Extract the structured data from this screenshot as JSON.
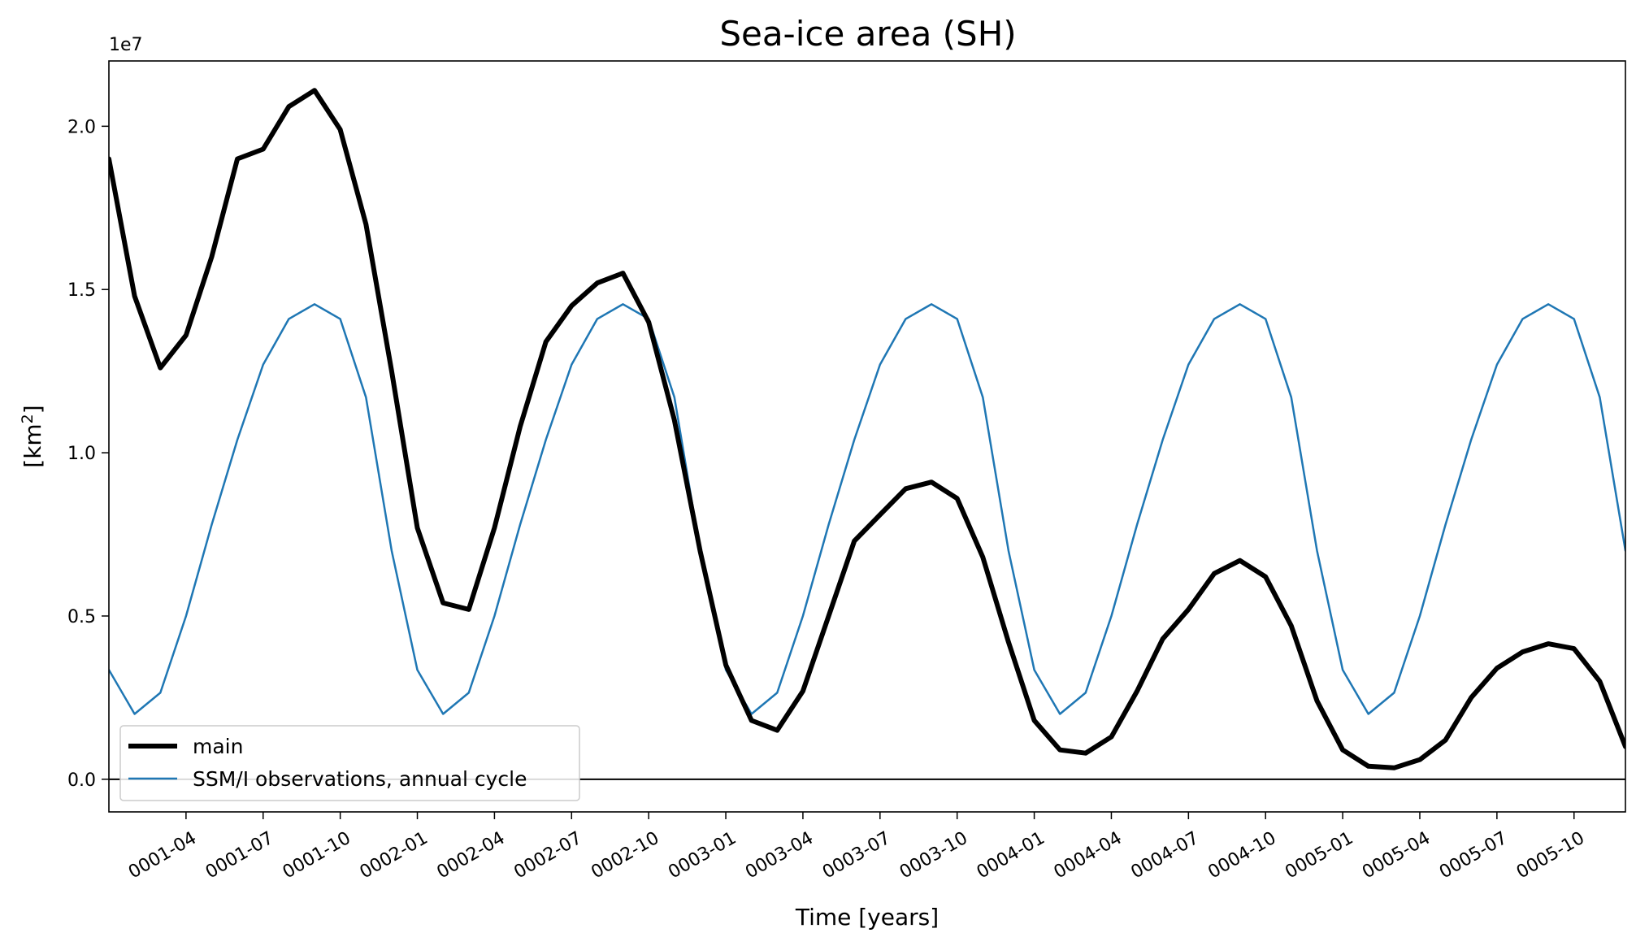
{
  "chart_data": {
    "type": "line",
    "title": "Sea-ice area (SH)",
    "xlabel": "Time [years]",
    "ylabel": "[km",
    "ylabel_sup": "2",
    "ylabel_close": "]",
    "y_offset_label": "1e7",
    "x_tick_labels": [
      "0001-04",
      "0001-07",
      "0001-10",
      "0002-01",
      "0002-04",
      "0002-07",
      "0002-10",
      "0003-01",
      "0003-04",
      "0003-07",
      "0003-10",
      "0004-01",
      "0004-04",
      "0004-07",
      "0004-10",
      "0005-01",
      "0005-04",
      "0005-07",
      "0005-10"
    ],
    "x_tick_months": [
      3,
      6,
      9,
      12,
      15,
      18,
      21,
      24,
      27,
      30,
      33,
      36,
      39,
      42,
      45,
      48,
      51,
      54,
      57
    ],
    "xlim": [
      0,
      59
    ],
    "ylim": [
      -0.1,
      2.2
    ],
    "y_ticks": [
      0.0,
      0.5,
      1.0,
      1.5,
      2.0
    ],
    "y_tick_labels": [
      "0.0",
      "0.5",
      "1.0",
      "1.5",
      "2.0"
    ],
    "zero_line": true,
    "legend": {
      "placement": "lower-left"
    },
    "series": [
      {
        "name": "main",
        "color": "#000000",
        "values": [
          1.9,
          1.48,
          1.26,
          1.36,
          1.6,
          1.9,
          1.93,
          2.06,
          2.11,
          1.99,
          1.7,
          1.25,
          0.77,
          0.54,
          0.52,
          0.77,
          1.08,
          1.34,
          1.45,
          1.52,
          1.55,
          1.4,
          1.1,
          0.7,
          0.35,
          0.18,
          0.15,
          0.27,
          0.5,
          0.73,
          0.81,
          0.89,
          0.91,
          0.86,
          0.68,
          0.42,
          0.18,
          0.09,
          0.08,
          0.13,
          0.27,
          0.43,
          0.52,
          0.63,
          0.67,
          0.62,
          0.47,
          0.24,
          0.09,
          0.04,
          0.035,
          0.06,
          0.12,
          0.25,
          0.34,
          0.39,
          0.415,
          0.4,
          0.3,
          0.1
        ]
      },
      {
        "name": "SSM/I observations, annual cycle",
        "color": "#1f77b4",
        "values": [
          0.335,
          0.2,
          0.265,
          0.5,
          0.78,
          1.04,
          1.27,
          1.41,
          1.455,
          1.41,
          1.17,
          0.7,
          0.335,
          0.2,
          0.265,
          0.5,
          0.78,
          1.04,
          1.27,
          1.41,
          1.455,
          1.41,
          1.17,
          0.7,
          0.335,
          0.2,
          0.265,
          0.5,
          0.78,
          1.04,
          1.27,
          1.41,
          1.455,
          1.41,
          1.17,
          0.7,
          0.335,
          0.2,
          0.265,
          0.5,
          0.78,
          1.04,
          1.27,
          1.41,
          1.455,
          1.41,
          1.17,
          0.7,
          0.335,
          0.2,
          0.265,
          0.5,
          0.78,
          1.04,
          1.27,
          1.41,
          1.455,
          1.41,
          1.17,
          0.7
        ]
      }
    ]
  }
}
